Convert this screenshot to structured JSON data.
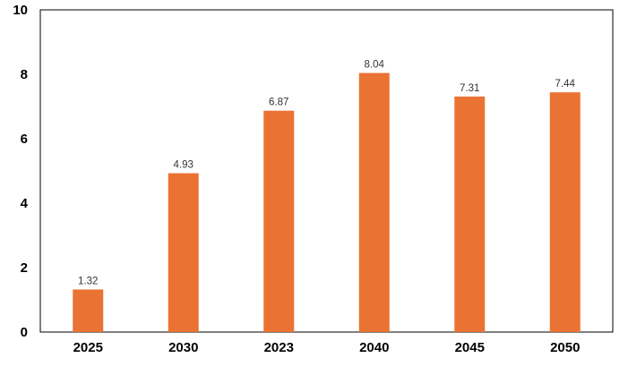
{
  "chart_data": {
    "type": "bar",
    "title": "",
    "xlabel": "",
    "ylabel": "",
    "categories": [
      "2025",
      "2030",
      "2023",
      "2040",
      "2045",
      "2050"
    ],
    "values": [
      1.32,
      4.93,
      6.87,
      8.04,
      7.31,
      7.44
    ],
    "data_labels": [
      "1.32",
      "4.93",
      "6.87",
      "8.04",
      "7.31",
      "7.44"
    ],
    "ylim": [
      0,
      10
    ],
    "y_ticks": [
      "0",
      "2",
      "4",
      "6",
      "8",
      "10"
    ],
    "grid": false,
    "legend": "none",
    "colors": {
      "bar": "#EA7334",
      "axis": "#000000",
      "text": "#000000",
      "data_label_text": "#333333"
    }
  }
}
